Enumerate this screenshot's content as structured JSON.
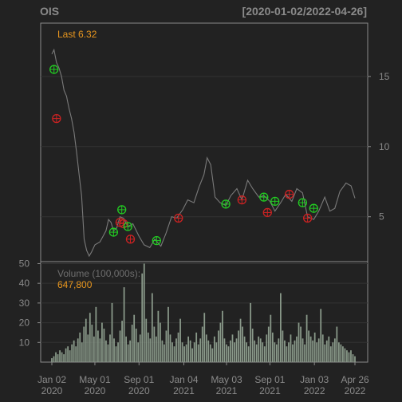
{
  "chart_data": {
    "type": "line",
    "ticker": "OIS",
    "date_range": "[2020-01-02/2022-04-26]",
    "last_label": "Last 6.32",
    "price": {
      "series": [
        {
          "x": [
            "2020-01-02",
            "2020-01-08",
            "2020-01-15",
            "2020-01-22",
            "2020-01-29",
            "2020-02-05",
            "2020-02-12",
            "2020-02-19",
            "2020-02-26",
            "2020-03-04",
            "2020-03-11",
            "2020-03-18",
            "2020-03-25",
            "2020-04-01",
            "2020-04-08",
            "2020-04-15",
            "2020-04-22",
            "2020-05-01",
            "2020-05-15",
            "2020-06-01",
            "2020-06-08",
            "2020-06-15",
            "2020-06-22",
            "2020-07-01",
            "2020-07-10",
            "2020-07-20",
            "2020-08-01",
            "2020-08-15",
            "2020-09-01",
            "2020-09-15",
            "2020-10-01",
            "2020-10-15",
            "2020-11-01",
            "2020-11-15",
            "2020-12-01",
            "2020-12-15",
            "2021-01-01",
            "2021-01-15",
            "2021-02-01",
            "2021-02-15",
            "2021-03-01",
            "2021-03-10",
            "2021-03-20",
            "2021-04-01",
            "2021-04-15",
            "2021-05-01",
            "2021-05-15",
            "2021-06-01",
            "2021-06-15",
            "2021-07-01",
            "2021-07-15",
            "2021-08-01",
            "2021-08-15",
            "2021-09-01",
            "2021-09-15",
            "2021-10-01",
            "2021-10-15",
            "2021-11-01",
            "2021-11-15",
            "2021-12-01",
            "2021-12-15",
            "2022-01-01",
            "2022-01-15",
            "2022-02-01",
            "2022-02-15",
            "2022-03-01",
            "2022-03-15",
            "2022-04-01",
            "2022-04-15",
            "2022-04-26"
          ],
          "values": [
            16.6,
            16.9,
            16.0,
            15.6,
            15.0,
            14.0,
            13.6,
            12.7,
            12.0,
            11.0,
            9.6,
            8.0,
            6.5,
            3.4,
            2.6,
            2.2,
            2.5,
            3.0,
            3.2,
            4.0,
            4.8,
            4.6,
            4.0,
            4.2,
            5.0,
            4.9,
            4.3,
            4.5,
            3.6,
            3.0,
            2.8,
            3.4,
            2.9,
            3.8,
            5.0,
            4.9,
            5.5,
            6.2,
            6.0,
            7.1,
            8.0,
            9.2,
            8.7,
            6.4,
            6.0,
            5.8,
            6.5,
            7.0,
            6.2,
            7.6,
            7.0,
            6.4,
            6.5,
            6.1,
            5.4,
            6.0,
            6.6,
            6.1,
            7.0,
            6.7,
            5.0,
            4.8,
            5.4,
            6.4,
            5.4,
            5.6,
            6.8,
            7.4,
            7.2,
            6.32
          ],
          "color": "#7a7a7a"
        }
      ],
      "y_ticks": [
        5,
        10,
        15
      ],
      "ylim": [
        1.8,
        18.8
      ],
      "buy_signals": [
        {
          "x": "2020-01-08",
          "y": 15.5
        },
        {
          "x": "2020-06-22",
          "y": 3.9
        },
        {
          "x": "2020-07-15",
          "y": 5.5
        },
        {
          "x": "2020-08-01",
          "y": 4.3
        },
        {
          "x": "2020-10-20",
          "y": 3.3
        },
        {
          "x": "2021-05-01",
          "y": 5.9
        },
        {
          "x": "2021-08-15",
          "y": 6.4
        },
        {
          "x": "2021-09-15",
          "y": 6.1
        },
        {
          "x": "2021-12-01",
          "y": 6.0
        },
        {
          "x": "2022-01-01",
          "y": 5.6
        }
      ],
      "sell_signals": [
        {
          "x": "2020-01-15",
          "y": 12.0
        },
        {
          "x": "2020-07-10",
          "y": 4.6
        },
        {
          "x": "2020-07-20",
          "y": 4.5
        },
        {
          "x": "2020-08-08",
          "y": 3.4
        },
        {
          "x": "2020-12-20",
          "y": 4.9
        },
        {
          "x": "2021-06-15",
          "y": 6.2
        },
        {
          "x": "2021-08-25",
          "y": 5.3
        },
        {
          "x": "2021-10-25",
          "y": 6.6
        },
        {
          "x": "2021-12-15",
          "y": 4.9
        }
      ]
    },
    "volume": {
      "label": "Volume (100,000s):",
      "last_value": "647,800",
      "y_ticks": [
        10,
        20,
        30,
        40,
        50
      ],
      "ylim": [
        0,
        51
      ],
      "color": "#8a9a8a",
      "values": [
        2,
        3,
        5,
        4,
        6,
        5,
        4,
        7,
        8,
        6,
        9,
        11,
        8,
        12,
        15,
        10,
        18,
        22,
        14,
        25,
        19,
        13,
        28,
        16,
        12,
        20,
        17,
        11,
        9,
        14,
        30,
        12,
        8,
        10,
        16,
        21,
        38,
        13,
        9,
        11,
        19,
        24,
        17,
        10,
        14,
        45,
        50,
        22,
        15,
        12,
        35,
        18,
        13,
        26,
        20,
        11,
        9,
        16,
        28,
        14,
        10,
        8,
        12,
        15,
        22,
        10,
        8,
        9,
        13,
        11,
        7,
        10,
        15,
        9,
        12,
        18,
        25,
        14,
        11,
        9,
        7,
        13,
        10,
        16,
        20,
        26,
        12,
        9,
        8,
        11,
        14,
        10,
        12,
        16,
        22,
        18,
        13,
        10,
        8,
        30,
        17,
        11,
        9,
        13,
        12,
        10,
        8,
        14,
        18,
        24,
        15,
        10,
        9,
        12,
        35,
        16,
        11,
        8,
        10,
        14,
        9,
        11,
        13,
        20,
        18,
        12,
        9,
        24,
        16,
        13,
        11,
        15,
        10,
        12,
        27,
        14,
        9,
        11,
        13,
        8,
        10,
        12,
        18,
        10,
        9,
        8,
        7,
        6,
        5,
        6,
        4,
        3
      ]
    },
    "x_ticks": [
      {
        "date": "2020-01-02",
        "line1": "Jan 02",
        "line2": "2020"
      },
      {
        "date": "2020-05-01",
        "line1": "May 01",
        "line2": "2020"
      },
      {
        "date": "2020-09-01",
        "line1": "Sep 01",
        "line2": "2020"
      },
      {
        "date": "2021-01-04",
        "line1": "Jan 04",
        "line2": "2021"
      },
      {
        "date": "2021-05-03",
        "line1": "May 03",
        "line2": "2021"
      },
      {
        "date": "2021-09-01",
        "line1": "Sep 01",
        "line2": "2021"
      },
      {
        "date": "2022-01-03",
        "line1": "Jan 03",
        "line2": "2022"
      },
      {
        "date": "2022-04-26",
        "line1": "Apr 26",
        "line2": "2022"
      }
    ],
    "colors": {
      "background": "#222222",
      "frame": "#8a8a8a",
      "grid": "#333333",
      "label_accent": "#e8961e",
      "buy": "#22cc22",
      "sell": "#cc2222"
    }
  }
}
